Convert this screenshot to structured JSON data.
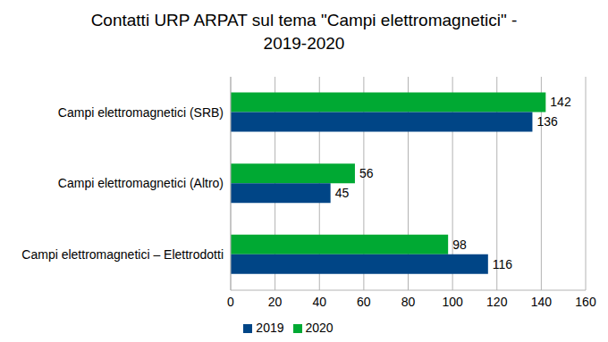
{
  "chart_data": {
    "type": "bar",
    "title": "Contatti URP ARPAT sul tema \"Campi elettromagnetici\" - 2019-2020",
    "orientation": "horizontal",
    "categories": [
      "Campi elettromagnetici (SRB)",
      "Campi elettromagnetici (Altro)",
      "Campi elettromagnetici – Elettrodotti"
    ],
    "series": [
      {
        "name": "2020",
        "color": "#00a933",
        "values": [
          142,
          56,
          98
        ]
      },
      {
        "name": "2019",
        "color": "#004586",
        "values": [
          136,
          45,
          116
        ]
      }
    ],
    "xlim": [
      0,
      160
    ],
    "xticks": [
      0,
      20,
      40,
      60,
      80,
      100,
      120,
      140,
      160
    ],
    "grid": true,
    "legend": "bottom",
    "data_labels": true
  }
}
